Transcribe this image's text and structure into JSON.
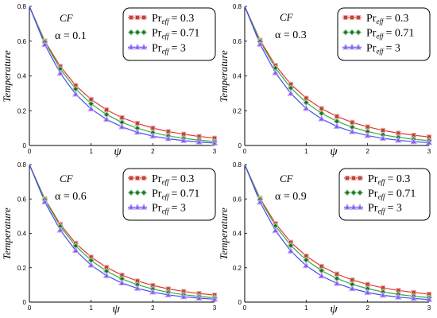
{
  "chart_data": [
    {
      "type": "line",
      "annotation": [
        "CF",
        "α = 0.1"
      ],
      "xlabel": "ψ",
      "ylabel": "Temperature",
      "xlim": [
        0,
        3
      ],
      "ylim": [
        0,
        0.8
      ],
      "xticks": [
        0,
        1,
        2,
        3
      ],
      "xtick_labels": [
        "0",
        "1",
        "2",
        "3"
      ],
      "yticks": [
        0,
        0.2,
        0.4,
        0.6,
        0.8
      ],
      "ytick_labels": [
        "0",
        "0.2",
        "0.4",
        "0.6",
        "0.8"
      ],
      "grid": false,
      "legend": "top-right",
      "x": [
        0,
        0.25,
        0.5,
        0.75,
        1.0,
        1.25,
        1.5,
        1.75,
        2.0,
        2.25,
        2.5,
        2.75,
        3.0
      ],
      "series": [
        {
          "label": {
            "base": "Pr",
            "sub": "eff",
            "rest": "= 0.3"
          },
          "marker": "square",
          "line_color": "#e2382f",
          "marker_color": "#b34a2a",
          "marker_edge": "#f3a6b6",
          "values": [
            0.8,
            0.6,
            0.455,
            0.345,
            0.265,
            0.205,
            0.16,
            0.127,
            0.1,
            0.08,
            0.065,
            0.052,
            0.042
          ]
        },
        {
          "label": {
            "base": "Pr",
            "sub": "eff",
            "rest": "= 0.71"
          },
          "marker": "diamond",
          "line_color": "#3aa845",
          "marker_color": "#1f6e2c",
          "marker_edge": "#9ad49e",
          "values": [
            0.8,
            0.595,
            0.44,
            0.325,
            0.24,
            0.178,
            0.133,
            0.099,
            0.074,
            0.055,
            0.041,
            0.031,
            0.023
          ]
        },
        {
          "label": {
            "base": "Pr",
            "sub": "eff",
            "rest": "= 3"
          },
          "marker": "triangle",
          "line_color": "#3f4ff0",
          "marker_color": "#8a52f5",
          "marker_edge": "#b9a6f7",
          "values": [
            0.8,
            0.58,
            0.415,
            0.295,
            0.21,
            0.15,
            0.107,
            0.076,
            0.054,
            0.039,
            0.028,
            0.02,
            0.014
          ]
        }
      ]
    },
    {
      "type": "line",
      "annotation": [
        "CF",
        "α = 0.3"
      ],
      "xlabel": "ψ",
      "ylabel": "Temperature",
      "xlim": [
        0,
        3
      ],
      "ylim": [
        0,
        0.8
      ],
      "xticks": [
        0,
        1,
        2,
        3
      ],
      "xtick_labels": [
        "0",
        "1",
        "2",
        "3"
      ],
      "yticks": [
        0,
        0.2,
        0.4,
        0.6,
        0.8
      ],
      "ytick_labels": [
        "0",
        "0.2",
        "0.4",
        "0.6",
        "0.8"
      ],
      "grid": false,
      "legend": "top-right",
      "x": [
        0,
        0.25,
        0.5,
        0.75,
        1.0,
        1.25,
        1.5,
        1.75,
        2.0,
        2.25,
        2.5,
        2.75,
        3.0
      ],
      "series": [
        {
          "label": {
            "base": "Pr",
            "sub": "eff",
            "rest": "= 0.3"
          },
          "marker": "square",
          "line_color": "#e2382f",
          "marker_color": "#b34a2a",
          "marker_edge": "#f3a6b6",
          "values": [
            0.8,
            0.605,
            0.46,
            0.352,
            0.272,
            0.212,
            0.167,
            0.133,
            0.107,
            0.087,
            0.071,
            0.059,
            0.049
          ]
        },
        {
          "label": {
            "base": "Pr",
            "sub": "eff",
            "rest": "= 0.71"
          },
          "marker": "diamond",
          "line_color": "#3aa845",
          "marker_color": "#1f6e2c",
          "marker_edge": "#9ad49e",
          "values": [
            0.8,
            0.598,
            0.445,
            0.331,
            0.247,
            0.185,
            0.139,
            0.105,
            0.08,
            0.061,
            0.047,
            0.036,
            0.028
          ]
        },
        {
          "label": {
            "base": "Pr",
            "sub": "eff",
            "rest": "= 3"
          },
          "marker": "triangle",
          "line_color": "#3f4ff0",
          "marker_color": "#8a52f5",
          "marker_edge": "#b9a6f7",
          "values": [
            0.8,
            0.582,
            0.418,
            0.299,
            0.213,
            0.153,
            0.11,
            0.079,
            0.057,
            0.041,
            0.03,
            0.022,
            0.016
          ]
        }
      ]
    },
    {
      "type": "line",
      "annotation": [
        "CF",
        "α = 0.6"
      ],
      "xlabel": "ψ",
      "ylabel": "Temperature",
      "xlim": [
        0,
        3
      ],
      "ylim": [
        0,
        0.8
      ],
      "xticks": [
        0,
        1,
        2,
        3
      ],
      "xtick_labels": [
        "0",
        "1",
        "2",
        "3"
      ],
      "yticks": [
        0,
        0.2,
        0.4,
        0.6,
        0.8
      ],
      "ytick_labels": [
        "0",
        "0.2",
        "0.4",
        "0.6",
        "0.8"
      ],
      "grid": false,
      "legend": "top-right",
      "x": [
        0,
        0.25,
        0.5,
        0.75,
        1.0,
        1.25,
        1.5,
        1.75,
        2.0,
        2.25,
        2.5,
        2.75,
        3.0
      ],
      "series": [
        {
          "label": {
            "base": "Pr",
            "sub": "eff",
            "rest": "= 0.3"
          },
          "marker": "square",
          "line_color": "#e2382f",
          "marker_color": "#b34a2a",
          "marker_edge": "#f3a6b6",
          "values": [
            0.8,
            0.6,
            0.452,
            0.342,
            0.262,
            0.202,
            0.157,
            0.123,
            0.097,
            0.077,
            0.062,
            0.05,
            0.041
          ]
        },
        {
          "label": {
            "base": "Pr",
            "sub": "eff",
            "rest": "= 0.71"
          },
          "marker": "diamond",
          "line_color": "#3aa845",
          "marker_color": "#1f6e2c",
          "marker_edge": "#9ad49e",
          "values": [
            0.8,
            0.596,
            0.441,
            0.327,
            0.242,
            0.18,
            0.135,
            0.101,
            0.076,
            0.057,
            0.043,
            0.033,
            0.025
          ]
        },
        {
          "label": {
            "base": "Pr",
            "sub": "eff",
            "rest": "= 3"
          },
          "marker": "triangle",
          "line_color": "#3f4ff0",
          "marker_color": "#8a52f5",
          "marker_edge": "#b9a6f7",
          "values": [
            0.8,
            0.583,
            0.419,
            0.3,
            0.215,
            0.154,
            0.111,
            0.08,
            0.058,
            0.042,
            0.031,
            0.023,
            0.017
          ]
        }
      ]
    },
    {
      "type": "line",
      "annotation": [
        "CF",
        "α = 0.9"
      ],
      "xlabel": "ψ",
      "ylabel": "Temperature",
      "xlim": [
        0,
        3
      ],
      "ylim": [
        0,
        0.8
      ],
      "xticks": [
        0,
        1,
        2,
        3
      ],
      "xtick_labels": [
        "0",
        "1",
        "2",
        "3"
      ],
      "yticks": [
        0,
        0.2,
        0.4,
        0.6,
        0.8
      ],
      "ytick_labels": [
        "0",
        "0.2",
        "0.4",
        "0.6",
        "0.8"
      ],
      "grid": false,
      "legend": "top-right",
      "x": [
        0,
        0.25,
        0.5,
        0.75,
        1.0,
        1.25,
        1.5,
        1.75,
        2.0,
        2.25,
        2.5,
        2.75,
        3.0
      ],
      "series": [
        {
          "label": {
            "base": "Pr",
            "sub": "eff",
            "rest": "= 0.3"
          },
          "marker": "square",
          "line_color": "#e2382f",
          "marker_color": "#b34a2a",
          "marker_edge": "#f3a6b6",
          "values": [
            0.8,
            0.603,
            0.457,
            0.348,
            0.268,
            0.208,
            0.163,
            0.129,
            0.103,
            0.083,
            0.068,
            0.056,
            0.046
          ]
        },
        {
          "label": {
            "base": "Pr",
            "sub": "eff",
            "rest": "= 0.71"
          },
          "marker": "diamond",
          "line_color": "#3aa845",
          "marker_color": "#1f6e2c",
          "marker_edge": "#9ad49e",
          "values": [
            0.8,
            0.597,
            0.443,
            0.329,
            0.245,
            0.183,
            0.137,
            0.103,
            0.078,
            0.059,
            0.045,
            0.034,
            0.026
          ]
        },
        {
          "label": {
            "base": "Pr",
            "sub": "eff",
            "rest": "= 3"
          },
          "marker": "triangle",
          "line_color": "#3f4ff0",
          "marker_color": "#8a52f5",
          "marker_edge": "#b9a6f7",
          "values": [
            0.8,
            0.581,
            0.416,
            0.297,
            0.212,
            0.152,
            0.109,
            0.078,
            0.056,
            0.04,
            0.029,
            0.021,
            0.015
          ]
        }
      ]
    }
  ]
}
